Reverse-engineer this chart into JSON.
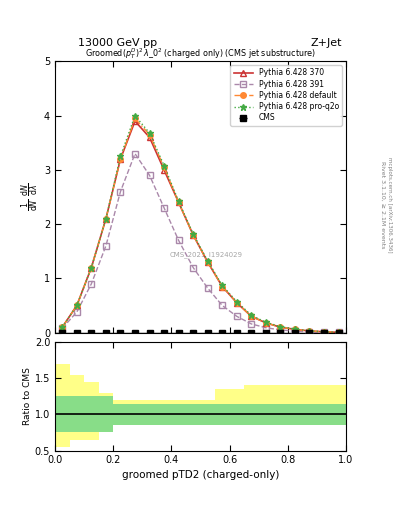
{
  "title_top": "13000 GeV pp",
  "title_right": "Z+Jet",
  "plot_title": "Groomed$(p_T^D)^2\\,\\lambda\\_0^2$ (charged only) (CMS jet substructure)",
  "xlabel": "groomed pTD2 (charged-only)",
  "ylabel": "$\\frac{1}{\\mathrm{d}N/\\mathrm{d}\\lambda}\\,\\frac{\\mathrm{d}N}{\\mathrm{d}\\lambda}$",
  "ylabel_ratio": "Ratio to CMS",
  "right_label": "Rivet 3.1.10, ≥ 2.1M events",
  "right_label2": "mcplots.cern.ch [arXiv:1306.3436]",
  "watermark": "CMS_2021_I1924029",
  "x_data": [
    0.025,
    0.075,
    0.125,
    0.175,
    0.225,
    0.275,
    0.325,
    0.375,
    0.425,
    0.475,
    0.525,
    0.575,
    0.625,
    0.675,
    0.725,
    0.775,
    0.825,
    0.875,
    0.925,
    0.975
  ],
  "cms_y": [
    0.0,
    0.0,
    0.0,
    0.0,
    0.0,
    0.0,
    0.0,
    0.0,
    0.0,
    0.0,
    0.0,
    0.0,
    0.0,
    0.0,
    0.0,
    0.0,
    0.0,
    0.0,
    0.0,
    0.0
  ],
  "cms_xerr": [
    0.025,
    0.025,
    0.025,
    0.025,
    0.025,
    0.025,
    0.025,
    0.025,
    0.025,
    0.025,
    0.025,
    0.025,
    0.025,
    0.025,
    0.025,
    0.025,
    0.025,
    0.025,
    0.025,
    0.025
  ],
  "py370_x": [
    0.025,
    0.075,
    0.125,
    0.175,
    0.225,
    0.275,
    0.325,
    0.375,
    0.425,
    0.475,
    0.525,
    0.575,
    0.625,
    0.675,
    0.725,
    0.775,
    0.825,
    0.875,
    0.925,
    0.975
  ],
  "py370_y": [
    0.1,
    0.5,
    1.2,
    2.1,
    3.2,
    3.9,
    3.6,
    3.0,
    2.4,
    1.8,
    1.3,
    0.85,
    0.55,
    0.3,
    0.18,
    0.1,
    0.06,
    0.03,
    0.015,
    0.005
  ],
  "py391_x": [
    0.025,
    0.075,
    0.125,
    0.175,
    0.225,
    0.275,
    0.325,
    0.375,
    0.425,
    0.475,
    0.525,
    0.575,
    0.625,
    0.675,
    0.725,
    0.775,
    0.825,
    0.875,
    0.925,
    0.975
  ],
  "py391_y": [
    0.08,
    0.38,
    0.9,
    1.6,
    2.6,
    3.3,
    2.9,
    2.3,
    1.7,
    1.2,
    0.82,
    0.5,
    0.3,
    0.16,
    0.09,
    0.05,
    0.025,
    0.012,
    0.006,
    0.002
  ],
  "pydef_x": [
    0.025,
    0.075,
    0.125,
    0.175,
    0.225,
    0.275,
    0.325,
    0.375,
    0.425,
    0.475,
    0.525,
    0.575,
    0.625,
    0.675,
    0.725,
    0.775,
    0.825,
    0.875,
    0.925,
    0.975
  ],
  "pydef_y": [
    0.1,
    0.5,
    1.2,
    2.1,
    3.2,
    3.95,
    3.65,
    3.05,
    2.4,
    1.8,
    1.3,
    0.85,
    0.55,
    0.3,
    0.18,
    0.1,
    0.06,
    0.03,
    0.015,
    0.005
  ],
  "pyq2o_x": [
    0.025,
    0.075,
    0.125,
    0.175,
    0.225,
    0.275,
    0.325,
    0.375,
    0.425,
    0.475,
    0.525,
    0.575,
    0.625,
    0.675,
    0.725,
    0.775,
    0.825,
    0.875,
    0.925,
    0.975
  ],
  "pyq2o_y": [
    0.1,
    0.5,
    1.2,
    2.1,
    3.25,
    4.0,
    3.68,
    3.08,
    2.42,
    1.82,
    1.32,
    0.87,
    0.57,
    0.32,
    0.19,
    0.11,
    0.065,
    0.034,
    0.016,
    0.006
  ],
  "color_py370": "#cc3333",
  "color_py391": "#aa88aa",
  "color_pydef": "#ff8833",
  "color_pyq2o": "#44aa44",
  "ylim_main": [
    0,
    5.0
  ],
  "ylim_ratio": [
    0.5,
    2.0
  ],
  "yticks_main": [
    0,
    1,
    2,
    3,
    4,
    5
  ],
  "yticks_ratio": [
    0.5,
    1.0,
    1.5,
    2.0
  ],
  "ratio_band1_lo": [
    0.75,
    0.75,
    0.75,
    0.75,
    0.85,
    0.85,
    0.85,
    0.85,
    0.85,
    0.85,
    0.85,
    0.85,
    0.85,
    0.85,
    0.85,
    0.85,
    0.85,
    0.85,
    0.85,
    0.85
  ],
  "ratio_band1_hi": [
    1.25,
    1.25,
    1.25,
    1.25,
    1.15,
    1.15,
    1.15,
    1.15,
    1.15,
    1.15,
    1.15,
    1.15,
    1.15,
    1.15,
    1.15,
    1.15,
    1.15,
    1.15,
    1.15,
    1.15
  ],
  "ratio_band2_lo": [
    0.55,
    0.65,
    0.65,
    0.75,
    0.85,
    0.85,
    0.85,
    0.85,
    0.85,
    0.85,
    0.85,
    0.85,
    0.85,
    0.85,
    0.85,
    0.85,
    0.85,
    0.85,
    0.85,
    0.85
  ],
  "ratio_band2_hi": [
    1.7,
    1.55,
    1.45,
    1.3,
    1.2,
    1.2,
    1.2,
    1.2,
    1.2,
    1.2,
    1.2,
    1.35,
    1.35,
    1.4,
    1.4,
    1.4,
    1.4,
    1.4,
    1.4,
    1.4
  ]
}
